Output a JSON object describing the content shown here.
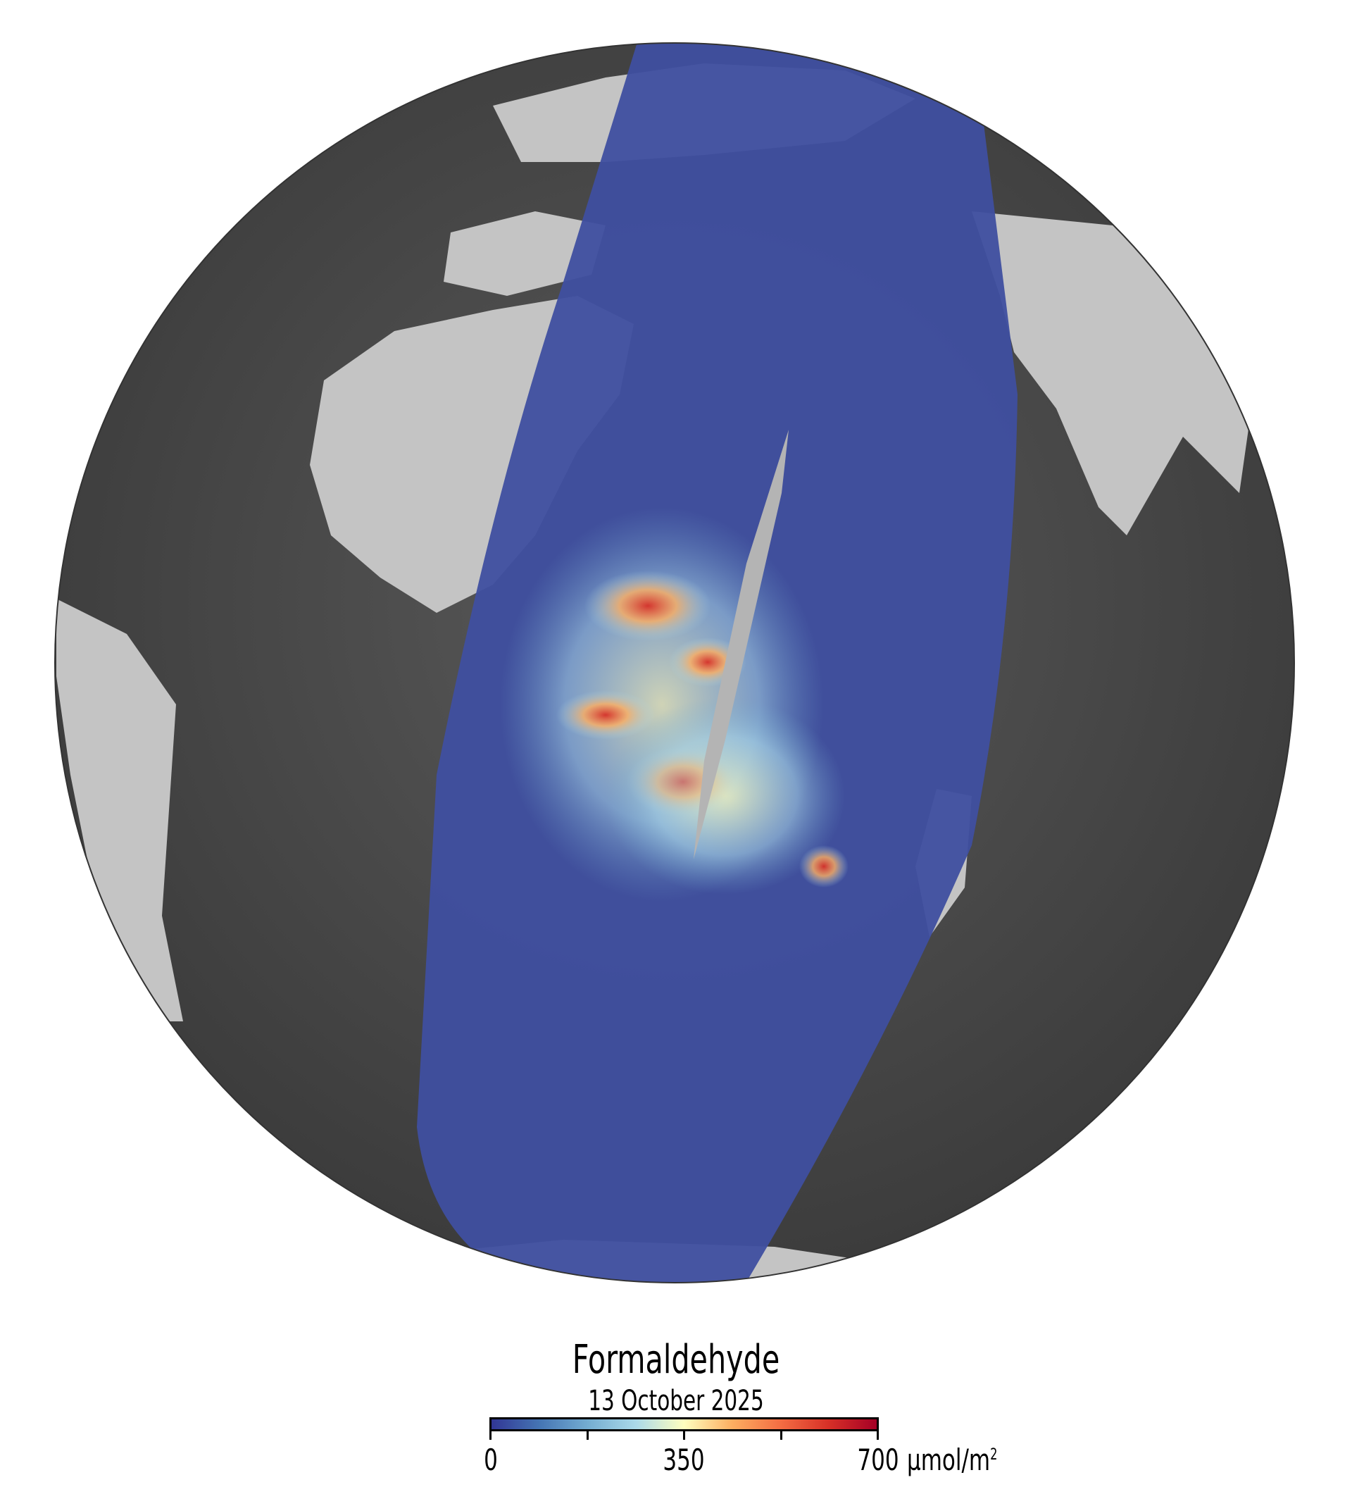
{
  "legend": {
    "title": "Formaldehyde",
    "date": "13 October 2025",
    "colormap": [
      "#313695",
      "#4575b4",
      "#74add1",
      "#abd9e9",
      "#ffffbf",
      "#fdae61",
      "#f46d43",
      "#d73027",
      "#a50026"
    ],
    "min_label": "0",
    "mid_label": "350",
    "max_label": "700",
    "unit": "µmol/m",
    "unit_exponent": "2",
    "range": [
      0,
      700
    ]
  },
  "map": {
    "projection": "orthographic globe",
    "background_colors": {
      "ocean": "#4a4a4a",
      "land": "#c8c8c8",
      "swath_base": "#3d4a9a"
    }
  }
}
